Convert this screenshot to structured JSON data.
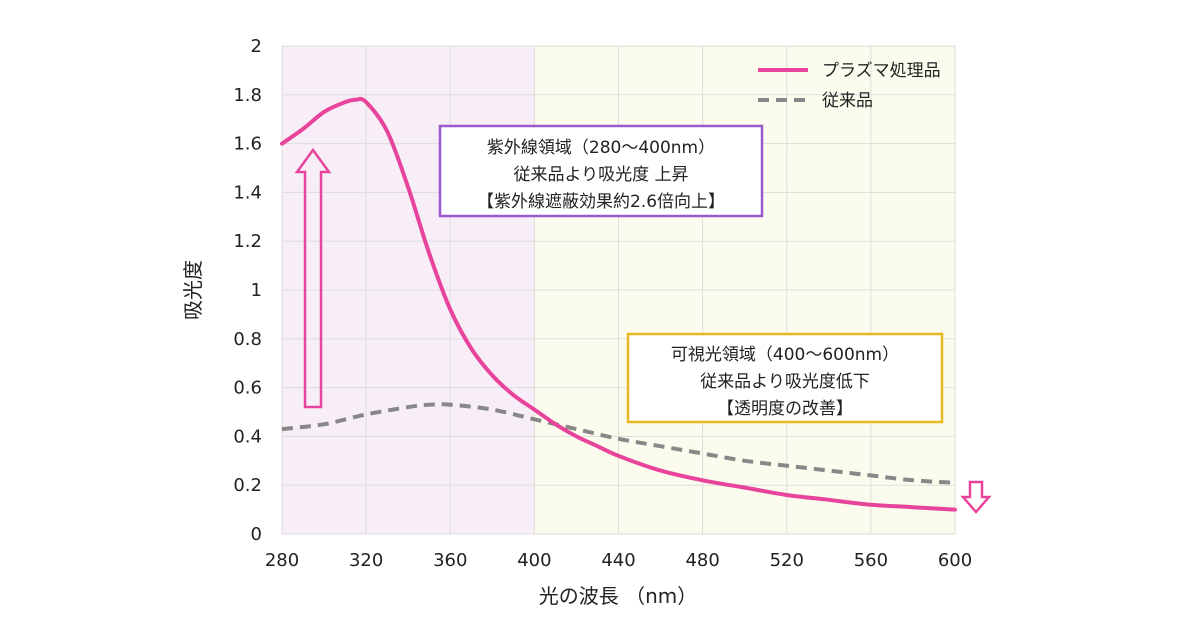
{
  "chart_data": {
    "type": "line",
    "xlabel": "光の波長 （nm）",
    "ylabel": "吸光度",
    "xlim": [
      280,
      600
    ],
    "ylim": [
      0,
      2
    ],
    "x_ticks": [
      "280",
      "320",
      "360",
      "400",
      "440",
      "480",
      "520",
      "560",
      "600"
    ],
    "y_ticks": [
      "0",
      "0.2",
      "0.4",
      "0.6",
      "0.8",
      "1",
      "1.2",
      "1.4",
      "1.6",
      "1.8",
      "2"
    ],
    "grid": true,
    "legend_position": "top-right",
    "regions": [
      {
        "from": 280,
        "to": 400,
        "color": "#f7eef7"
      },
      {
        "from": 400,
        "to": 600,
        "color": "#fcfcee"
      }
    ],
    "series": [
      {
        "name": "プラズマ処理品",
        "color": "#e8449b",
        "style": "solid",
        "x": [
          280,
          290,
          300,
          310,
          315,
          320,
          330,
          340,
          350,
          360,
          370,
          380,
          390,
          400,
          410,
          420,
          430,
          440,
          460,
          480,
          500,
          520,
          540,
          560,
          580,
          600
        ],
        "y": [
          1.6,
          1.66,
          1.73,
          1.77,
          1.78,
          1.77,
          1.65,
          1.42,
          1.15,
          0.92,
          0.76,
          0.65,
          0.57,
          0.51,
          0.45,
          0.4,
          0.36,
          0.32,
          0.26,
          0.22,
          0.19,
          0.16,
          0.14,
          0.12,
          0.11,
          0.1
        ]
      },
      {
        "name": "従来品",
        "color": "#888888",
        "style": "dashed",
        "x": [
          280,
          300,
          320,
          340,
          350,
          360,
          380,
          400,
          420,
          440,
          460,
          480,
          500,
          520,
          540,
          560,
          580,
          600
        ],
        "y": [
          0.43,
          0.45,
          0.49,
          0.52,
          0.53,
          0.53,
          0.51,
          0.47,
          0.43,
          0.39,
          0.36,
          0.33,
          0.3,
          0.28,
          0.26,
          0.24,
          0.22,
          0.21
        ]
      }
    ],
    "annotations": [
      {
        "id": "uv",
        "lines": [
          "紫外線領域（280～400nm）",
          "従来品より吸光度 上昇",
          "【紫外線遮蔽効果約2.6倍向上】"
        ],
        "border_color": "#9b59d0"
      },
      {
        "id": "visible",
        "lines": [
          "可視光領域（400～600nm）",
          "従来品より吸光度低下",
          "【透明度の改善】"
        ],
        "border_color": "#e8b820"
      }
    ],
    "arrows": [
      {
        "direction": "up",
        "color": "#e8449b"
      },
      {
        "direction": "down",
        "color": "#e8449b"
      }
    ]
  }
}
